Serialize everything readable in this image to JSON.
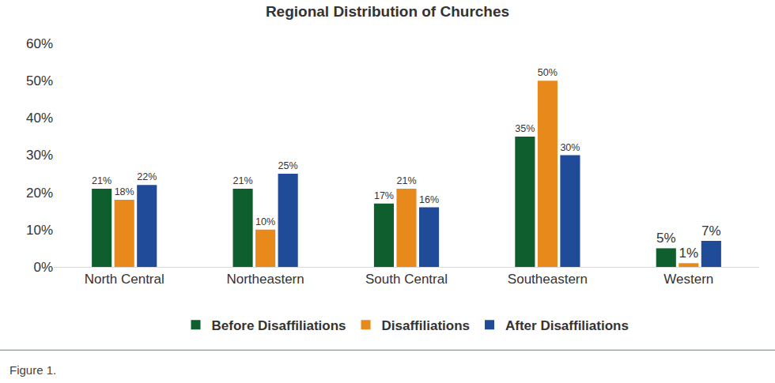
{
  "chart_data": {
    "type": "bar",
    "title": "Regional Distribution of Churches",
    "caption": "Figure 1.",
    "categories": [
      "North Central",
      "Northeastern",
      "South Central",
      "Southeastern",
      "Western"
    ],
    "series": [
      {
        "name": "Before Disaffiliations",
        "color": "#0f5e2e",
        "values": [
          21,
          21,
          17,
          35,
          5
        ],
        "value_labels": [
          "21%",
          "21%",
          "17%",
          "35%",
          "5%"
        ]
      },
      {
        "name": "Disaffiliations",
        "color": "#e8891b",
        "values": [
          18,
          10,
          21,
          50,
          1
        ],
        "value_labels": [
          "18%",
          "10%",
          "21%",
          "50%",
          "1%"
        ]
      },
      {
        "name": "After Disaffiliations",
        "color": "#1f4b99",
        "values": [
          22,
          25,
          16,
          30,
          7
        ],
        "value_labels": [
          "22%",
          "25%",
          "16%",
          "30%",
          "7%"
        ]
      }
    ],
    "ylim": [
      0,
      60
    ],
    "yticks": [
      {
        "value": 0,
        "label": "0%"
      },
      {
        "value": 10,
        "label": "10%"
      },
      {
        "value": 20,
        "label": "20%"
      },
      {
        "value": 30,
        "label": "30%"
      },
      {
        "value": 40,
        "label": "40%"
      },
      {
        "value": 50,
        "label": "50%"
      },
      {
        "value": 60,
        "label": "60%"
      }
    ],
    "grid": false,
    "legend": "bottom",
    "data_labels": true
  }
}
